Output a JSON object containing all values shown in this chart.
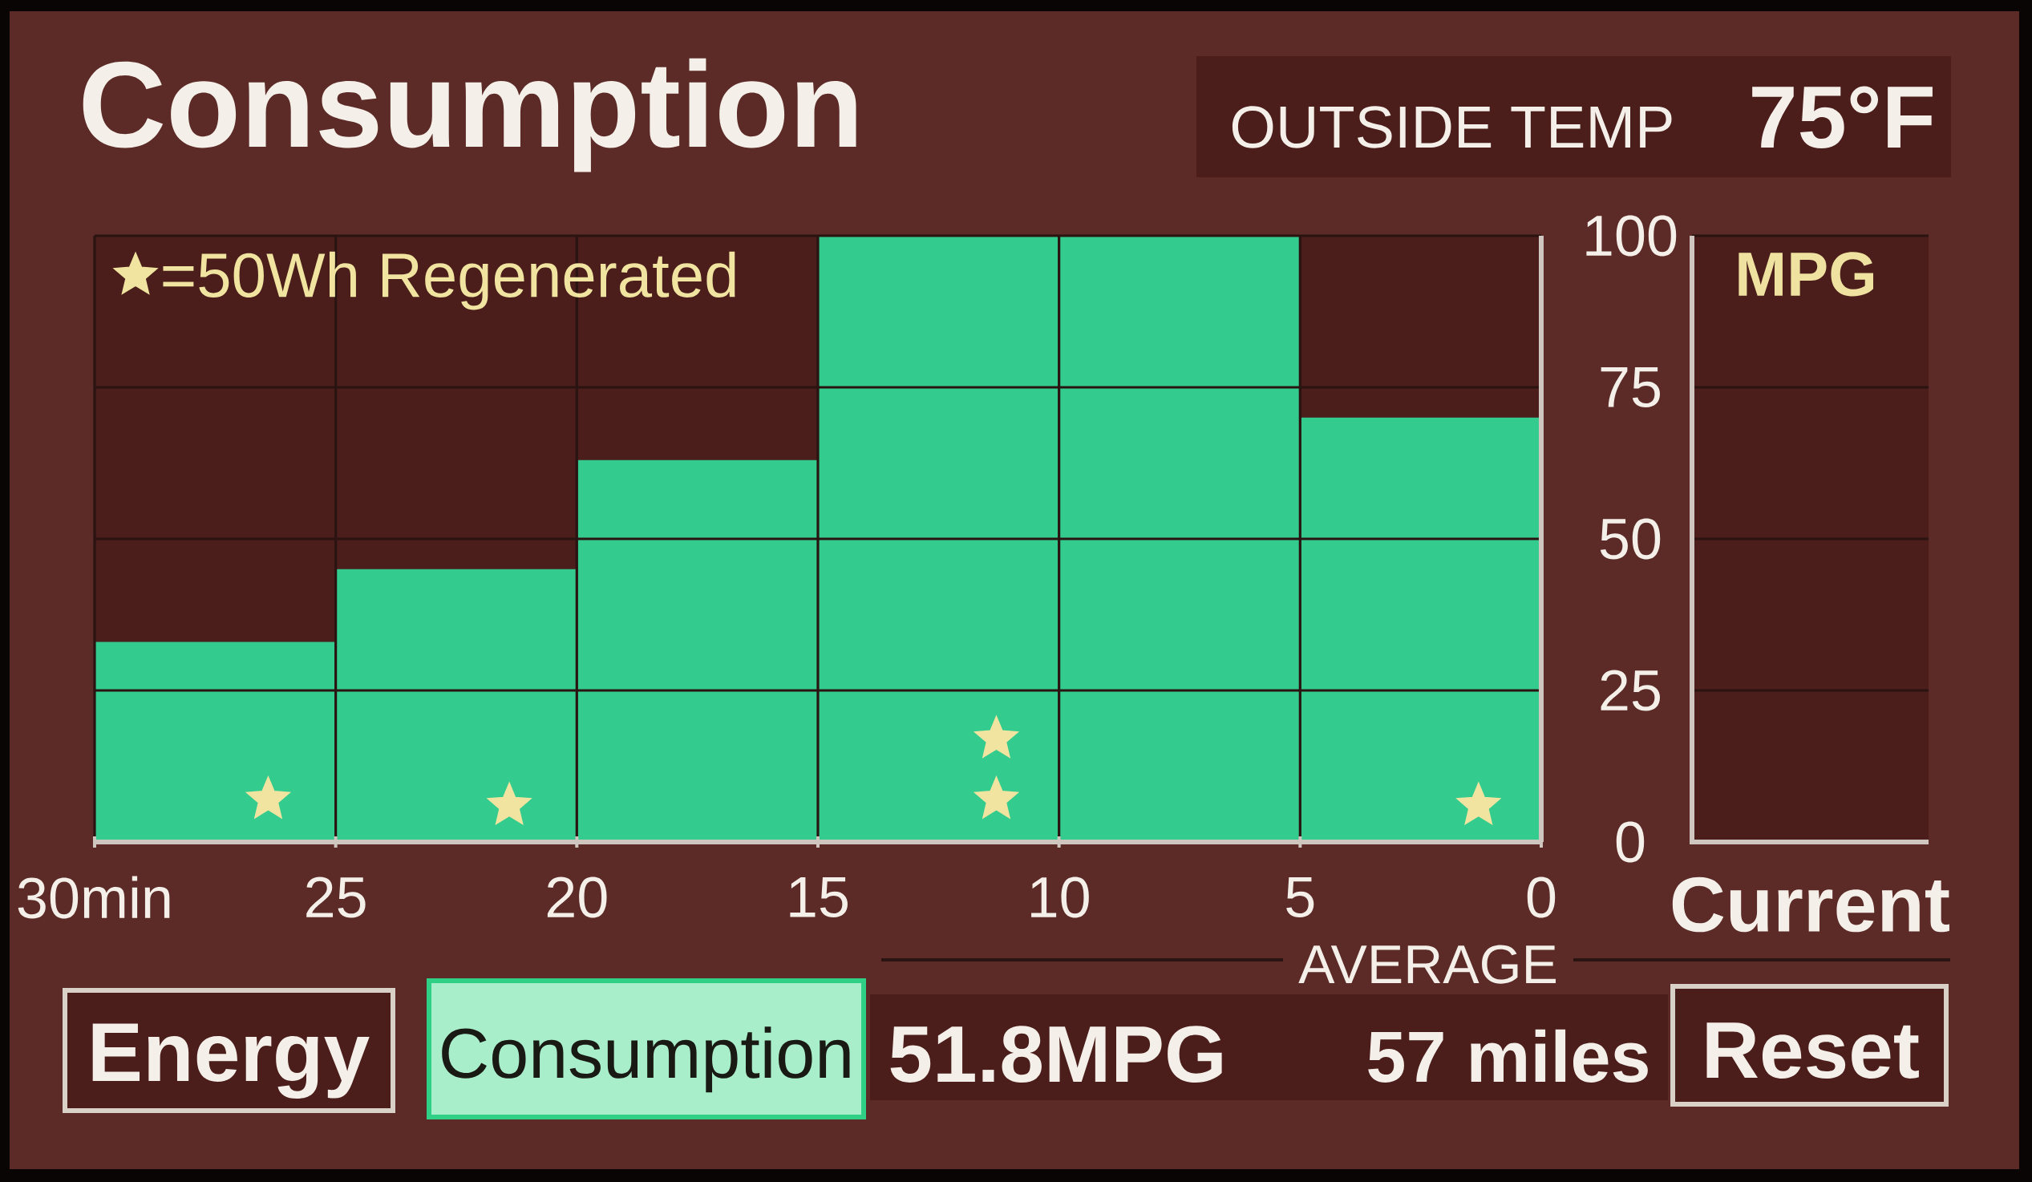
{
  "chart_data": [
    {
      "type": "histogram",
      "title": "Consumption",
      "bins": [
        30,
        25,
        20,
        15,
        10,
        5,
        0
      ],
      "series": [
        {
          "color": "#34cc8e",
          "values": [
            33,
            45,
            63,
            100,
            100,
            70
          ]
        },
        {
          "name": "=50Wh Regenerated",
          "type": "scatter",
          "color": "#f0e4a0",
          "x": [
            26.4,
            21.4,
            11.3,
            11.3,
            1.3
          ],
          "values": [
            7,
            6,
            7,
            17,
            6
          ]
        }
      ],
      "xlim": [
        30,
        0
      ],
      "xticks": [
        {
          "value": 30,
          "label": "30min"
        },
        25,
        20,
        15,
        10,
        5,
        0
      ],
      "ylim": [
        0,
        100
      ],
      "yticks": [
        0,
        25,
        50,
        75,
        100
      ],
      "grid": true,
      "legend": "top left",
      "marker": "star",
      "annotations": [
        "OUTSIDE TEMP",
        "75°F",
        "AVERAGE",
        "51.8MPG",
        "57 miles",
        "Energy",
        "Consumption",
        "Reset"
      ]
    },
    {
      "type": "other",
      "title": "MPG",
      "annotations": [
        "Current"
      ]
    }
  ]
}
